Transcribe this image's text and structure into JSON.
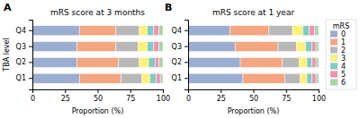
{
  "chart_data": [
    {
      "type": "bar",
      "orientation": "horizontal",
      "stacked": true,
      "title": "mRS score at 3 months",
      "xlabel": "Proportion (%)",
      "ylabel": "TBA level",
      "annotations": [
        "A"
      ],
      "categories": [
        "Q1",
        "Q2",
        "Q3",
        "Q4"
      ],
      "series": [
        {
          "color": "#9badd0",
          "values": [
            36,
            34,
            34,
            36
          ]
        },
        {
          "color": "#f4a582",
          "values": [
            32,
            32,
            30,
            28
          ]
        },
        {
          "color": "#b8b8b8",
          "values": [
            16,
            16,
            17,
            18
          ]
        },
        {
          "color": "#fff176",
          "values": [
            6,
            7,
            7,
            6
          ]
        },
        {
          "color": "#80cbc4",
          "values": [
            5,
            5,
            5,
            5
          ]
        },
        {
          "color": "#f48fb1",
          "values": [
            3,
            3,
            4,
            4
          ]
        },
        {
          "color": "#a5d6a7",
          "values": [
            2,
            3,
            3,
            3
          ]
        }
      ],
      "xlim": [
        0,
        100
      ],
      "xticks": [
        0,
        25,
        50,
        75,
        100
      ]
    },
    {
      "type": "bar",
      "orientation": "horizontal",
      "stacked": true,
      "title": "mRS score at 1 year",
      "xlabel": "Proportion (%)",
      "annotations": [
        "B"
      ],
      "categories": [
        "Q1",
        "Q2",
        "Q3",
        "Q4"
      ],
      "series": [
        {
          "name": "0",
          "color": "#9badd0",
          "values": [
            42,
            40,
            36,
            32
          ]
        },
        {
          "name": "1",
          "color": "#f4a582",
          "values": [
            32,
            32,
            33,
            30
          ]
        },
        {
          "name": "2",
          "color": "#b8b8b8",
          "values": [
            12,
            13,
            14,
            18
          ]
        },
        {
          "name": "3",
          "color": "#fff176",
          "values": [
            5,
            6,
            7,
            8
          ]
        },
        {
          "name": "4",
          "color": "#80cbc4",
          "values": [
            4,
            4,
            5,
            5
          ]
        },
        {
          "name": "5",
          "color": "#f48fb1",
          "values": [
            3,
            3,
            3,
            4
          ]
        },
        {
          "name": "6",
          "color": "#a5d6a7",
          "values": [
            2,
            2,
            2,
            3
          ]
        }
      ],
      "xlim": [
        0,
        100
      ],
      "xticks": [
        0,
        25,
        50,
        75,
        100
      ],
      "legend": "right",
      "legend_title": "mRS"
    }
  ]
}
